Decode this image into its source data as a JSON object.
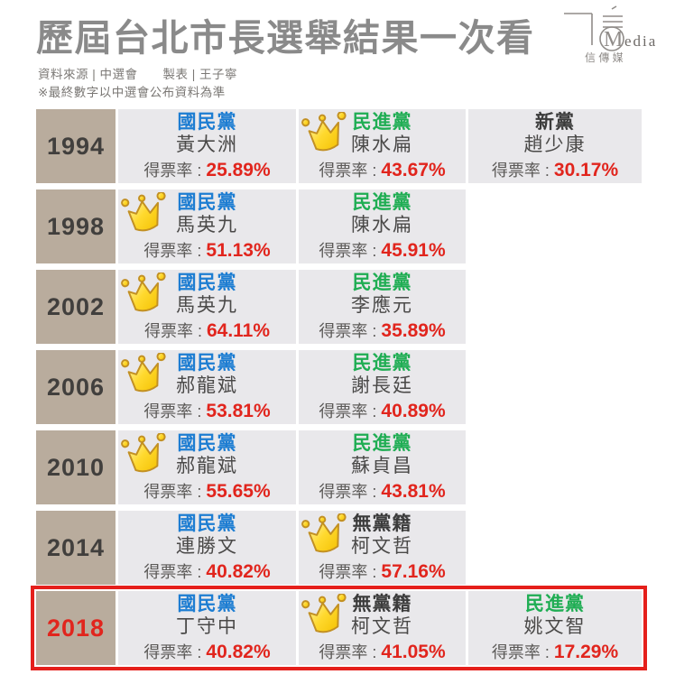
{
  "header": {
    "title": "歷屆台北市長選舉結果一次看",
    "source_line": "資料來源 | 中選會　　製表 | 王子寧",
    "note_line": "※最終數字以中選會公布資料為準"
  },
  "logo": {
    "brand_text": "edia",
    "monogram": "M",
    "subtitle": "信 傳 媒"
  },
  "labels": {
    "vote_rate_prefix": "得票率 : "
  },
  "colors": {
    "party_colors": {
      "國民黨": "#1d7dd2",
      "民進黨": "#1fad53",
      "新黨": "#3b3b3b",
      "無黨籍": "#3b3b3b"
    },
    "value_red": "#e1251d",
    "highlight_border": "#e51f1b",
    "year_cell_bg": "#b9ac9d",
    "cell_bg": "#e9e8eb",
    "title_gray": "#8a8a8a",
    "crown_gold": "#ffd92e"
  },
  "chart_data": {
    "type": "table",
    "title": "歷屆台北市長選舉結果一次看",
    "value_unit": "得票率(%)",
    "records": [
      {
        "year": "1994",
        "highlight": false,
        "candidates": [
          {
            "party": "國民黨",
            "name": "黃大洲",
            "vote_share": 25.89,
            "winner": false
          },
          {
            "party": "民進黨",
            "name": "陳水扁",
            "vote_share": 43.67,
            "winner": true
          },
          {
            "party": "新黨",
            "name": "趙少康",
            "vote_share": 30.17,
            "winner": false
          }
        ]
      },
      {
        "year": "1998",
        "highlight": false,
        "candidates": [
          {
            "party": "國民黨",
            "name": "馬英九",
            "vote_share": 51.13,
            "winner": true
          },
          {
            "party": "民進黨",
            "name": "陳水扁",
            "vote_share": 45.91,
            "winner": false
          }
        ]
      },
      {
        "year": "2002",
        "highlight": false,
        "candidates": [
          {
            "party": "國民黨",
            "name": "馬英九",
            "vote_share": 64.11,
            "winner": true
          },
          {
            "party": "民進黨",
            "name": "李應元",
            "vote_share": 35.89,
            "winner": false
          }
        ]
      },
      {
        "year": "2006",
        "highlight": false,
        "candidates": [
          {
            "party": "國民黨",
            "name": "郝龍斌",
            "vote_share": 53.81,
            "winner": true
          },
          {
            "party": "民進黨",
            "name": "謝長廷",
            "vote_share": 40.89,
            "winner": false
          }
        ]
      },
      {
        "year": "2010",
        "highlight": false,
        "candidates": [
          {
            "party": "國民黨",
            "name": "郝龍斌",
            "vote_share": 55.65,
            "winner": true
          },
          {
            "party": "民進黨",
            "name": "蘇貞昌",
            "vote_share": 43.81,
            "winner": false
          }
        ]
      },
      {
        "year": "2014",
        "highlight": false,
        "candidates": [
          {
            "party": "國民黨",
            "name": "連勝文",
            "vote_share": 40.82,
            "winner": false
          },
          {
            "party": "無黨籍",
            "name": "柯文哲",
            "vote_share": 57.16,
            "winner": true
          }
        ]
      },
      {
        "year": "2018",
        "highlight": true,
        "candidates": [
          {
            "party": "國民黨",
            "name": "丁守中",
            "vote_share": 40.82,
            "winner": false
          },
          {
            "party": "無黨籍",
            "name": "柯文哲",
            "vote_share": 41.05,
            "winner": true
          },
          {
            "party": "民進黨",
            "name": "姚文智",
            "vote_share": 17.29,
            "winner": false
          }
        ]
      }
    ]
  }
}
